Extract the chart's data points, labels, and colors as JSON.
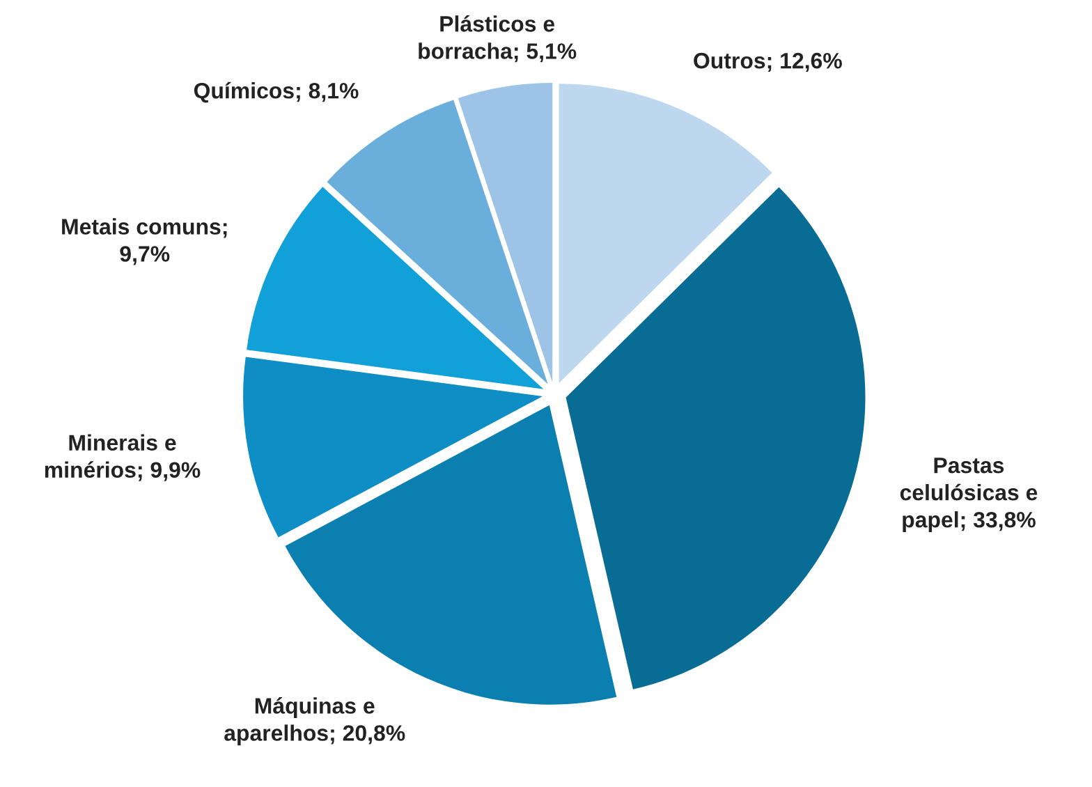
{
  "chart_data": {
    "type": "pie",
    "categories": [
      "Outros; 12,6%",
      "Pastas\ncelulósicas e\npapel; 33,8%",
      "Máquinas e\naparelhos; 20,8%",
      "Minerais e\nminérios; 9,9%",
      "Metais comuns;\n9,7%",
      "Químicos; 8,1%",
      "Plásticos e\nborracha; 5,1%"
    ],
    "values": [
      12.6,
      33.8,
      20.8,
      9.9,
      9.7,
      8.1,
      5.1
    ],
    "colors": [
      "#bdd7ee",
      "#086c94",
      "#0b7fb0",
      "#0e8ec4",
      "#12a0d8",
      "#6aaedb",
      "#9dc3e6"
    ]
  }
}
